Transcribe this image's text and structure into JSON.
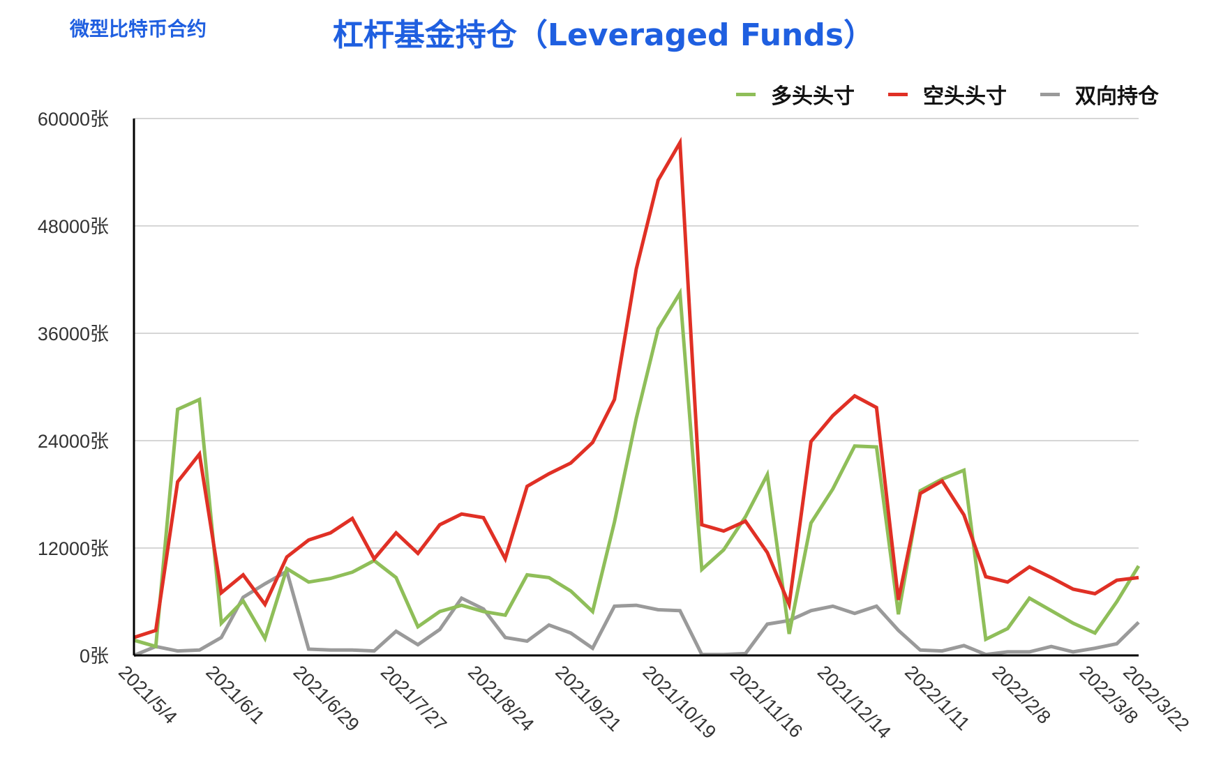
{
  "header": {
    "corner_title": "微型比特币合约",
    "main_title": "杠杆基金持仓（Leveraged Funds）"
  },
  "colors": {
    "long": "#8fbe59",
    "short": "#e03025",
    "spread": "#9a9a9a",
    "grid": "#c8c8c8",
    "axis": "#000000"
  },
  "chart_data": {
    "type": "line",
    "title": "杠杆基金持仓（Leveraged Funds）",
    "xlabel": "",
    "ylabel": "",
    "ylim": [
      0,
      60000
    ],
    "yticks": [
      0,
      12000,
      24000,
      36000,
      48000,
      60000
    ],
    "ytick_labels": [
      "0张",
      "12000张",
      "24000张",
      "36000张",
      "48000张",
      "60000张"
    ],
    "x_dates": [
      "2021/5/4",
      "2021/5/11",
      "2021/5/18",
      "2021/5/25",
      "2021/6/1",
      "2021/6/8",
      "2021/6/15",
      "2021/6/22",
      "2021/6/29",
      "2021/7/6",
      "2021/7/13",
      "2021/7/20",
      "2021/7/27",
      "2021/8/3",
      "2021/8/10",
      "2021/8/17",
      "2021/8/24",
      "2021/8/31",
      "2021/9/7",
      "2021/9/14",
      "2021/9/21",
      "2021/9/28",
      "2021/10/5",
      "2021/10/12",
      "2021/10/19",
      "2021/10/26",
      "2021/11/2",
      "2021/11/9",
      "2021/11/16",
      "2021/11/23",
      "2021/11/30",
      "2021/12/7",
      "2021/12/14",
      "2021/12/21",
      "2021/12/28",
      "2022/1/4",
      "2022/1/11",
      "2022/1/18",
      "2022/1/25",
      "2022/2/1",
      "2022/2/8",
      "2022/2/15",
      "2022/2/22",
      "2022/3/1",
      "2022/3/8",
      "2022/3/15",
      "2022/3/22"
    ],
    "x_tick_labels": [
      "2021/5/4",
      "2021/6/1",
      "2021/6/29",
      "2021/7/27",
      "2021/8/24",
      "2021/9/21",
      "2021/10/19",
      "2021/11/16",
      "2021/12/14",
      "2022/1/11",
      "2022/2/8",
      "2022/3/8",
      "2022/3/22"
    ],
    "legend_position": "top-right",
    "grid": true,
    "series": [
      {
        "name": "多头头寸",
        "values": [
          1700,
          1000,
          27500,
          28600,
          3600,
          6100,
          1900,
          9700,
          8200,
          8600,
          9300,
          10600,
          8700,
          3200,
          4900,
          5600,
          4900,
          4500,
          9000,
          8700,
          7200,
          4900,
          14900,
          26500,
          36500,
          40500,
          9600,
          11800,
          15500,
          20200,
          2400,
          14800,
          18600,
          23400,
          23300,
          4600,
          18400,
          19700,
          20700,
          1800,
          3000,
          6400,
          5000,
          3600,
          2500,
          6000,
          10000
        ]
      },
      {
        "name": "空头头寸",
        "values": [
          2000,
          2800,
          19400,
          22500,
          7000,
          9000,
          5700,
          11000,
          12900,
          13700,
          15300,
          10800,
          13700,
          11400,
          14600,
          15800,
          15400,
          10800,
          18900,
          20300,
          21500,
          23800,
          28600,
          43200,
          53100,
          57300,
          14600,
          13900,
          15000,
          11500,
          5700,
          23900,
          26800,
          29000,
          27700,
          6200,
          18100,
          19500,
          15700,
          8800,
          8200,
          9900,
          8700,
          7400,
          6900,
          8400,
          8700
        ]
      },
      {
        "name": "双向持仓",
        "values": [
          0,
          1000,
          500,
          600,
          2000,
          6500,
          8000,
          9400,
          700,
          600,
          600,
          500,
          2700,
          1200,
          2900,
          6400,
          5200,
          2000,
          1600,
          3400,
          2500,
          800,
          5500,
          5600,
          5100,
          5000,
          100,
          100,
          200,
          3500,
          3900,
          5000,
          5500,
          4700,
          5500,
          2800,
          600,
          500,
          1100,
          100,
          400,
          400,
          1000,
          400,
          800,
          1300,
          3700
        ]
      }
    ]
  }
}
